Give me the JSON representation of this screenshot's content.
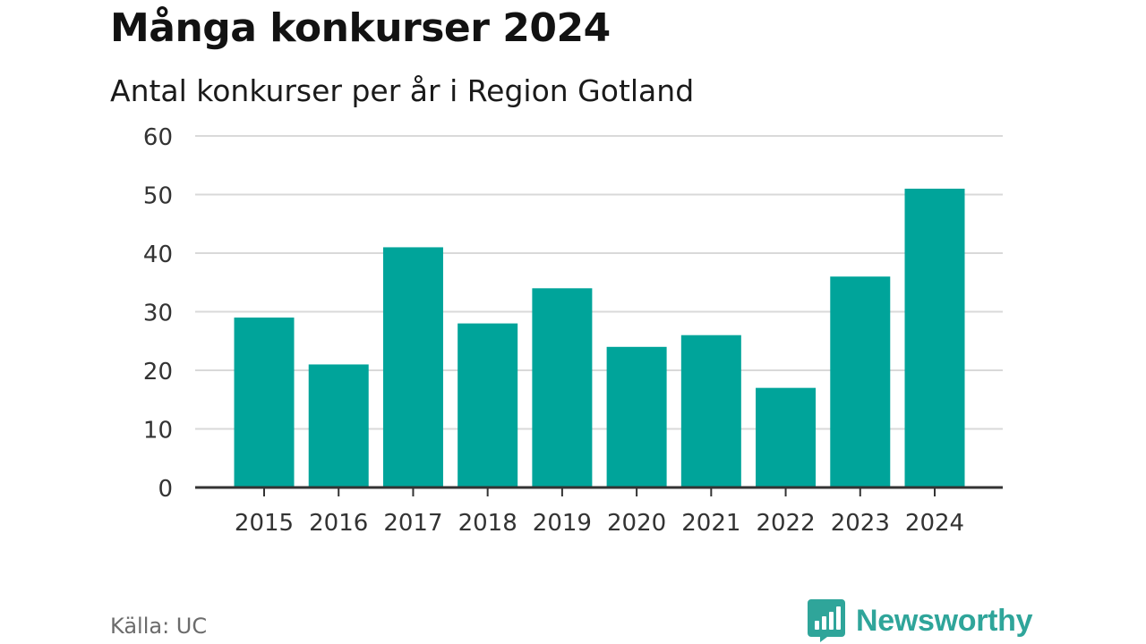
{
  "chart_data": {
    "type": "bar",
    "title": "Många konkurser 2024",
    "subtitle": "Antal konkurser per år i Region Gotland",
    "categories": [
      "2015",
      "2016",
      "2017",
      "2018",
      "2019",
      "2020",
      "2021",
      "2022",
      "2023",
      "2024"
    ],
    "values": [
      29,
      21,
      41,
      28,
      34,
      24,
      26,
      17,
      36,
      51
    ],
    "ylim": [
      0,
      60
    ],
    "yticks": [
      "0",
      "10",
      "20",
      "30",
      "40",
      "50",
      "60"
    ],
    "xlabel": "",
    "ylabel": "",
    "grid": true,
    "bar_color": "#00a49a",
    "grid_color": "#d9d9d9",
    "axis_color": "#333333"
  },
  "source": "Källa: UC",
  "brand": {
    "name": "Newsworthy",
    "color": "#2fa59a",
    "icon": "bar-chart-speech-bubble-icon"
  }
}
